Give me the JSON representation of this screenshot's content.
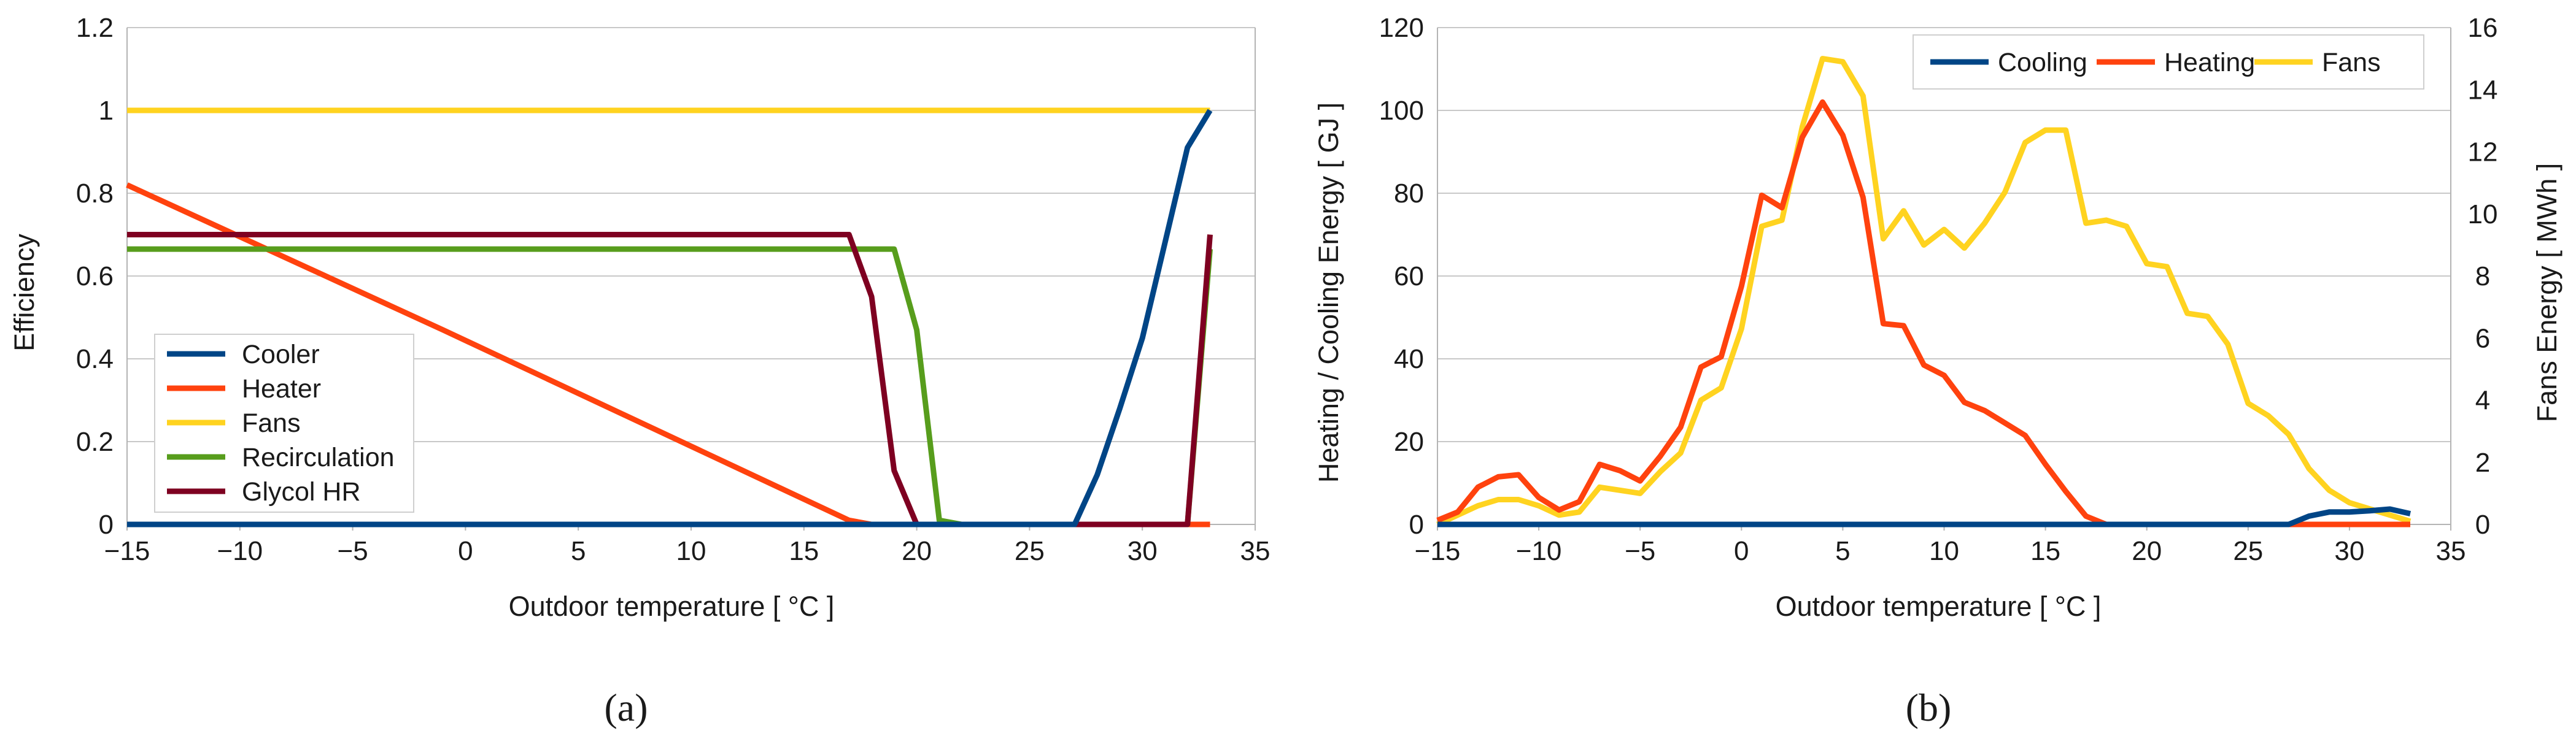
{
  "colors": {
    "cooling": "#004586",
    "heating": "#ff420e",
    "fans": "#ffd320",
    "recirculation": "#579d1c",
    "glycol": "#7e0021"
  },
  "chart_data": [
    {
      "type": "line",
      "caption": "(a)",
      "xlabel": "Outdoor temperature [ °C ]",
      "ylabel": "Efficiency",
      "xlim": [
        -15,
        35
      ],
      "ylim": [
        0,
        1.2
      ],
      "xticks": [
        -15,
        -10,
        -5,
        0,
        5,
        10,
        15,
        20,
        25,
        30,
        35
      ],
      "xtick_labels": [
        "−15",
        "−10",
        "−5",
        "0",
        "5",
        "10",
        "15",
        "20",
        "25",
        "30",
        "35"
      ],
      "yticks": [
        0,
        0.2,
        0.4,
        0.6,
        0.8,
        1,
        1.2
      ],
      "ytick_labels": [
        "0",
        "0.2",
        "0.4",
        "0.6",
        "0.8",
        "1",
        "1.2"
      ],
      "grid": "horizontal",
      "legend_position": "bottom-left",
      "series": [
        {
          "name": "Fans",
          "color_key": "fans",
          "x": [
            -15,
            33
          ],
          "y": [
            1,
            1
          ]
        },
        {
          "name": "Heater",
          "color_key": "heating",
          "x": [
            -15,
            -1,
            17,
            18,
            27,
            33
          ],
          "y": [
            0.82,
            0.47,
            0.01,
            0,
            0,
            0
          ]
        },
        {
          "name": "Recirculation",
          "color_key": "recirculation",
          "x": [
            -15,
            19,
            20,
            21,
            22,
            27,
            32,
            33
          ],
          "y": [
            0.665,
            0.665,
            0.47,
            0.01,
            0,
            0,
            0,
            0.665
          ]
        },
        {
          "name": "Glycol HR",
          "color_key": "glycol",
          "x": [
            -15,
            17,
            18,
            19,
            20,
            32,
            33
          ],
          "y": [
            0.7,
            0.7,
            0.55,
            0.13,
            0,
            0,
            0.7
          ]
        },
        {
          "name": "Cooler",
          "color_key": "cooling",
          "x": [
            -15,
            27,
            28,
            29,
            30,
            31,
            32,
            33
          ],
          "y": [
            0,
            0,
            0.12,
            0.28,
            0.45,
            0.68,
            0.91,
            1.0
          ]
        }
      ],
      "legend_order": [
        "Cooler",
        "Heater",
        "Fans",
        "Recirculation",
        "Glycol HR"
      ]
    },
    {
      "type": "line",
      "caption": "(b)",
      "xlabel": "Outdoor temperature [ °C ]",
      "ylabel": "Heating / Cooling Energy [ GJ ]",
      "y2label": "Fans Energy [ MWh ]",
      "xlim": [
        -15,
        35
      ],
      "ylim": [
        0,
        120
      ],
      "y2lim": [
        0,
        16
      ],
      "xticks": [
        -15,
        -10,
        -5,
        0,
        5,
        10,
        15,
        20,
        25,
        30,
        35
      ],
      "xtick_labels": [
        "−15",
        "−10",
        "−5",
        "0",
        "5",
        "10",
        "15",
        "20",
        "25",
        "30",
        "35"
      ],
      "yticks": [
        0,
        20,
        40,
        60,
        80,
        100,
        120
      ],
      "ytick_labels": [
        "0",
        "20",
        "40",
        "60",
        "80",
        "100",
        "120"
      ],
      "y2ticks": [
        0,
        2,
        4,
        6,
        8,
        10,
        12,
        14,
        16
      ],
      "y2tick_labels": [
        "0",
        "2",
        "4",
        "6",
        "8",
        "10",
        "12",
        "14",
        "16"
      ],
      "grid": "horizontal",
      "legend_position": "top-right",
      "series": [
        {
          "name": "Fans",
          "color_key": "fans",
          "axis": "right",
          "x": [
            -15,
            -14,
            -13,
            -12,
            -11,
            -10,
            -9,
            -8,
            -7,
            -6,
            -5,
            -4,
            -3,
            -2,
            -1,
            0,
            1,
            2,
            3,
            4,
            5,
            6,
            7,
            8,
            9,
            10,
            11,
            12,
            13,
            14,
            15,
            16,
            17,
            18,
            19,
            20,
            21,
            22,
            23,
            24,
            25,
            26,
            27,
            28,
            29,
            30,
            31,
            32,
            33
          ],
          "y": [
            0,
            0.3,
            0.6,
            0.8,
            0.8,
            0.6,
            0.3,
            0.4,
            1.2,
            1.1,
            1.0,
            1.7,
            2.3,
            4.0,
            4.4,
            6.3,
            9.6,
            9.8,
            12.8,
            15.0,
            14.9,
            13.8,
            9.2,
            10.1,
            9.0,
            9.5,
            8.9,
            9.7,
            10.7,
            12.3,
            12.7,
            12.7,
            9.7,
            9.8,
            9.6,
            8.4,
            8.3,
            6.8,
            6.7,
            5.8,
            3.9,
            3.5,
            2.9,
            1.8,
            1.1,
            0.7,
            0.5,
            0.3,
            0.1
          ]
        },
        {
          "name": "Heating",
          "color_key": "heating",
          "axis": "left",
          "x": [
            -15,
            -14,
            -13,
            -12,
            -11,
            -10,
            -9,
            -8,
            -7,
            -6,
            -5,
            -4,
            -3,
            -2,
            -1,
            0,
            1,
            2,
            3,
            4,
            5,
            6,
            7,
            8,
            9,
            10,
            11,
            12,
            13,
            14,
            15,
            16,
            17,
            18,
            19,
            20,
            21,
            22,
            23,
            24,
            25,
            26,
            27,
            28,
            29,
            30,
            31,
            32,
            33
          ],
          "y": [
            1,
            3,
            9,
            11.5,
            12,
            6.5,
            3.5,
            5.5,
            14.5,
            13,
            10.5,
            16.5,
            23.5,
            38,
            40.5,
            57.5,
            79.5,
            76.5,
            93.5,
            102,
            94,
            79,
            48.5,
            48,
            38.5,
            36,
            29.5,
            27.5,
            24.5,
            21.5,
            14.5,
            8,
            2,
            0,
            0,
            0,
            0,
            0,
            0,
            0,
            0,
            0,
            0,
            0,
            0,
            0,
            0,
            0,
            0
          ]
        },
        {
          "name": "Cooling",
          "color_key": "cooling",
          "axis": "left",
          "x": [
            -15,
            27,
            28,
            29,
            30,
            31,
            32,
            33
          ],
          "y": [
            0,
            0,
            2,
            3,
            3,
            3.3,
            3.7,
            2.6
          ]
        }
      ],
      "legend_order": [
        "Cooling",
        "Heating",
        "Fans"
      ]
    }
  ]
}
